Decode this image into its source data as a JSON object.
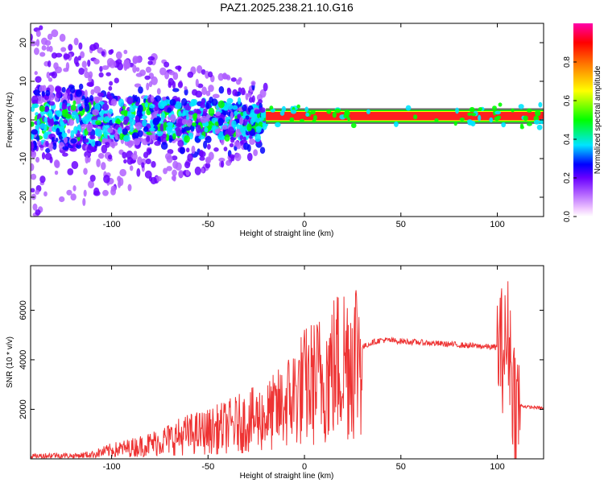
{
  "title": "PAZ1.2025.238.21.10.G16",
  "chart_data": [
    {
      "type": "heatmap",
      "xlabel": "Height of straight line (km)",
      "ylabel": "Frequency (Hz)",
      "xlim": [
        -142,
        124
      ],
      "ylim": [
        -25,
        25
      ],
      "xticks": [
        -100,
        -50,
        0,
        50,
        100
      ],
      "yticks": [
        -20,
        -10,
        0,
        10,
        20
      ],
      "colorbar": {
        "label": "Normalized spectral amplitude",
        "range": [
          0,
          1
        ],
        "ticks": [
          0.0,
          0.2,
          0.4,
          0.6,
          0.8
        ],
        "colormap": [
          "#ffffff",
          "#f0c8ff",
          "#b060ff",
          "#6a00ff",
          "#0000ff",
          "#00e5ff",
          "#00ff00",
          "#ffff00",
          "#ff8000",
          "#ff0000",
          "#ff00aa"
        ]
      },
      "description_regions": [
        {
          "x_range": [
            -142,
            -20
          ],
          "freq_range": [
            -25,
            25
          ],
          "amplitude": [
            0.05,
            0.3
          ]
        },
        {
          "x_range": [
            -20,
            124
          ],
          "freq_center": 1,
          "amplitude": [
            0.7,
            1.0
          ]
        }
      ]
    },
    {
      "type": "line",
      "xlabel": "Height of straight line (km)",
      "ylabel": "SNR (10 * v/v)",
      "xlim": [
        -142,
        124
      ],
      "ylim": [
        0,
        7800
      ],
      "xticks": [
        -100,
        -50,
        0,
        50,
        100
      ],
      "yticks": [
        2000,
        4000,
        6000
      ],
      "line_color": "#ee3333",
      "series": [
        {
          "x": [
            -142,
            -130,
            -120,
            -110,
            -100,
            -90,
            -80,
            -70,
            -60,
            -50,
            -40,
            -30,
            -20,
            -15,
            -10,
            -5,
            0,
            10,
            20,
            30,
            35,
            40,
            50,
            60,
            70,
            80,
            90,
            100,
            104,
            106,
            108,
            110,
            115,
            124
          ],
          "y": [
            100,
            150,
            120,
            180,
            350,
            450,
            600,
            800,
            1000,
            1100,
            1300,
            1500,
            1700,
            1900,
            2200,
            2600,
            2900,
            3300,
            4000,
            4500,
            4700,
            4800,
            4750,
            4700,
            4650,
            4600,
            4550,
            4500,
            4400,
            5000,
            3000,
            2200,
            2100,
            2050
          ]
        }
      ]
    }
  ]
}
